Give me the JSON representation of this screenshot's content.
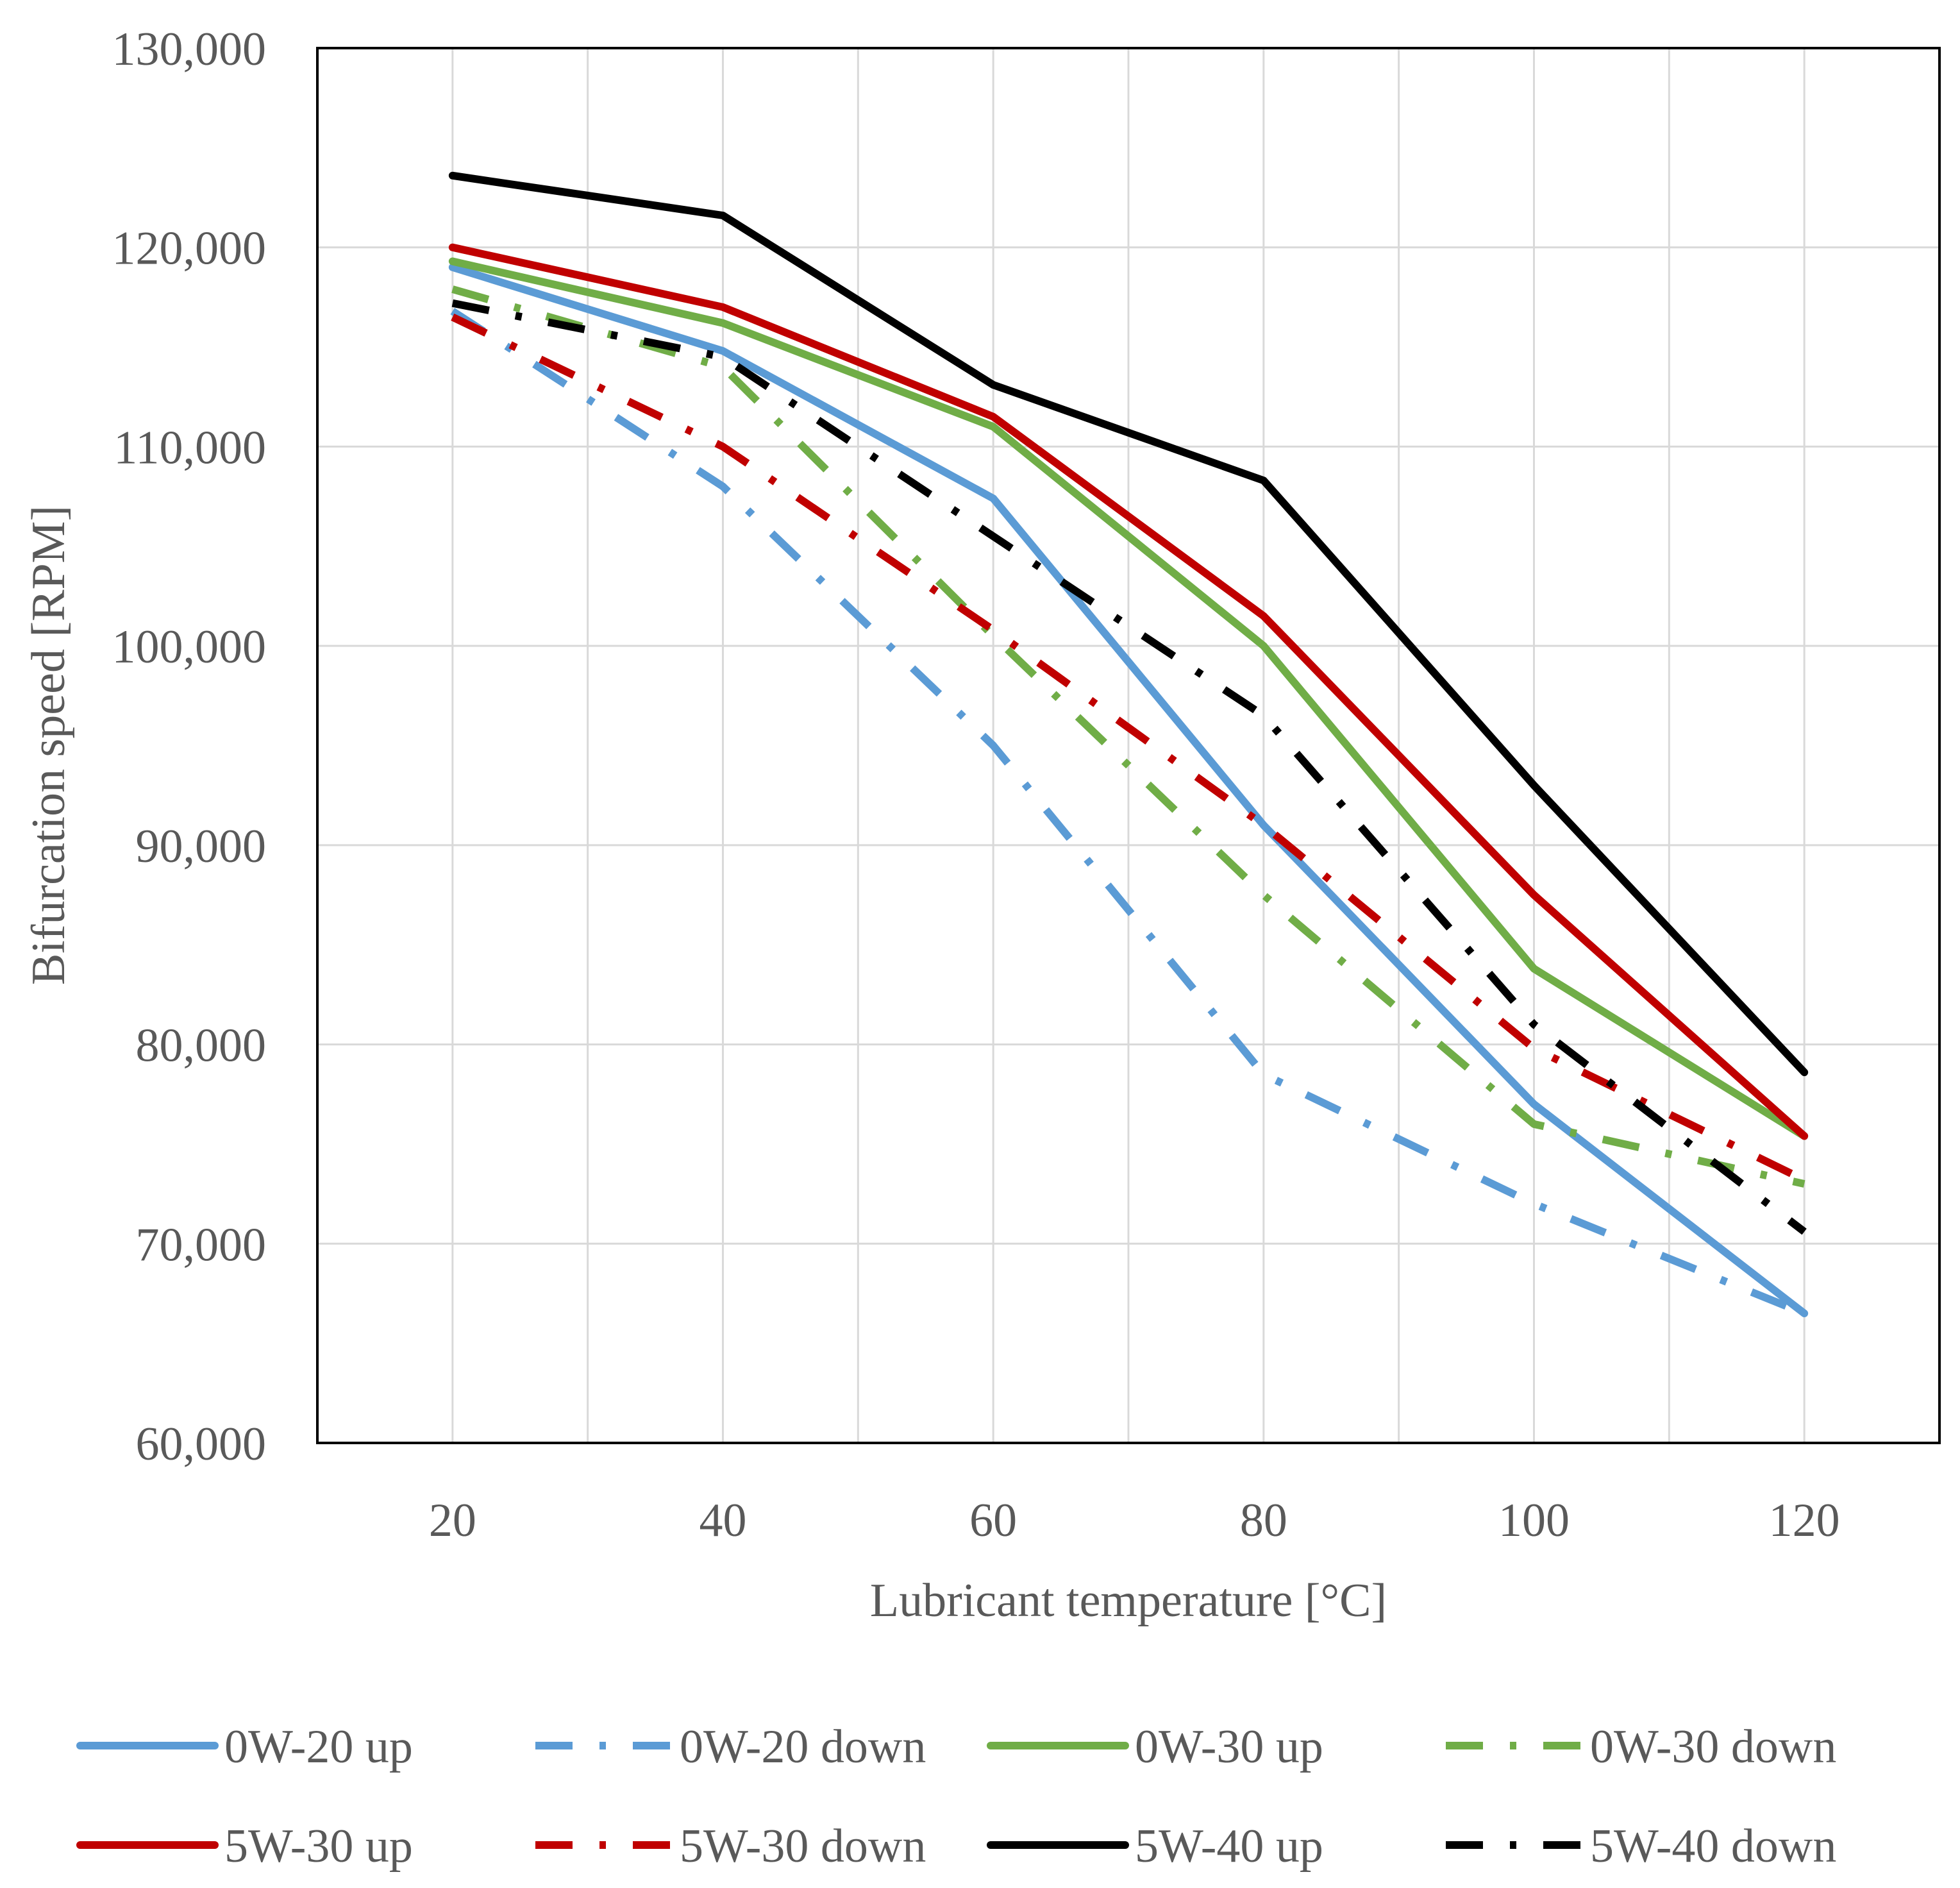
{
  "chart_data": {
    "type": "line",
    "title": "",
    "xlabel": "Lubricant temperature [°C]",
    "ylabel": "Bifurcation speed [RPM]",
    "x": [
      20,
      40,
      60,
      80,
      100,
      120
    ],
    "x_ticks": [
      "20",
      "40",
      "60",
      "80",
      "100",
      "120"
    ],
    "xlim": [
      10,
      130
    ],
    "ylim": [
      60000,
      130000
    ],
    "y_ticks": [
      "60,000",
      "70,000",
      "80,000",
      "90,000",
      "100,000",
      "110,000",
      "120,000",
      "130,000"
    ],
    "grid": true,
    "legend_position": "bottom",
    "series": [
      {
        "name": "0W-20 up",
        "color": "#5B9BD5",
        "style": "solid",
        "values": [
          119000,
          114800,
          107400,
          91000,
          77000,
          66500
        ]
      },
      {
        "name": "0W-20 down",
        "color": "#5B9BD5",
        "style": "dash-dot",
        "values": [
          116800,
          108000,
          95000,
          78500,
          72000,
          66500
        ]
      },
      {
        "name": "0W-30 up",
        "color": "#70AD47",
        "style": "solid",
        "values": [
          119300,
          116200,
          111000,
          100000,
          83800,
          75400
        ]
      },
      {
        "name": "0W-30 down",
        "color": "#70AD47",
        "style": "dash-dot",
        "values": [
          117900,
          114000,
          100500,
          87500,
          76000,
          73000
        ]
      },
      {
        "name": "5W-30 up",
        "color": "#C00000",
        "style": "solid",
        "values": [
          120000,
          117000,
          111500,
          101500,
          87500,
          75400
        ]
      },
      {
        "name": "5W-30 down",
        "color": "#C00000",
        "style": "dash-dot",
        "values": [
          116500,
          110000,
          100800,
          91000,
          79800,
          73200
        ]
      },
      {
        "name": "5W-40 up",
        "color": "#000000",
        "style": "solid",
        "values": [
          123600,
          121600,
          113100,
          108300,
          93000,
          78600
        ]
      },
      {
        "name": "5W-40 down",
        "color": "#000000",
        "style": "dash-dot",
        "values": [
          117200,
          114500,
          105500,
          96500,
          81000,
          70600
        ]
      }
    ]
  }
}
